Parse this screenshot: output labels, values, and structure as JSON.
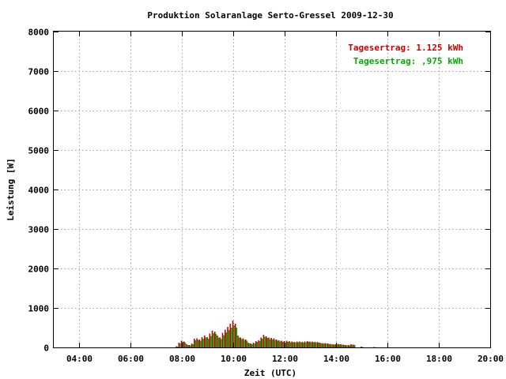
{
  "chart_data": {
    "type": "bar",
    "title": "Produktion Solaranlage Serto-Gressel 2009-12-30",
    "xlabel": "Zeit (UTC)",
    "ylabel": "Leistung [W]",
    "xlim": [
      3.0,
      20.0
    ],
    "ylim": [
      0,
      8000
    ],
    "xticks": [
      4,
      6,
      8,
      10,
      12,
      14,
      16,
      18,
      20
    ],
    "xtick_labels": [
      "04:00",
      "06:00",
      "08:00",
      "10:00",
      "12:00",
      "14:00",
      "16:00",
      "18:00",
      "20:00"
    ],
    "yticks": [
      0,
      1000,
      2000,
      3000,
      4000,
      5000,
      6000,
      7000,
      8000
    ],
    "ytick_labels": [
      "0",
      "1000",
      "2000",
      "3000",
      "4000",
      "5000",
      "6000",
      "7000",
      "8000"
    ],
    "grid": true,
    "legend": "top-right",
    "annotations": [
      {
        "text": "Tagesertrag: 1.125 kWh",
        "color": "#cc0000"
      },
      {
        "text": "Tagesertrag: ,975 kWh",
        "color": "#00aa00"
      }
    ],
    "series": [
      {
        "name": "",
        "color": "#cc0000",
        "x": [
          7.8,
          7.9,
          8.0,
          8.1,
          8.2,
          8.3,
          8.4,
          8.5,
          8.6,
          8.7,
          8.8,
          8.9,
          9.0,
          9.1,
          9.2,
          9.3,
          9.4,
          9.5,
          9.6,
          9.7,
          9.8,
          9.9,
          10.0,
          10.1,
          10.2,
          10.3,
          10.4,
          10.5,
          10.6,
          10.7,
          10.8,
          10.9,
          11.0,
          11.1,
          11.2,
          11.3,
          11.4,
          11.5,
          11.6,
          11.7,
          11.8,
          11.9,
          12.0,
          12.1,
          12.2,
          12.3,
          12.4,
          12.5,
          12.6,
          12.7,
          12.8,
          12.9,
          13.0,
          13.1,
          13.2,
          13.3,
          13.4,
          13.5,
          13.6,
          13.7,
          13.8,
          13.9,
          14.0,
          14.1,
          14.2,
          14.3,
          14.4,
          14.5,
          14.6,
          14.7,
          15.0,
          15.5
        ],
        "values": [
          30,
          120,
          170,
          150,
          80,
          60,
          100,
          220,
          230,
          200,
          260,
          300,
          260,
          350,
          420,
          400,
          300,
          250,
          370,
          450,
          520,
          600,
          680,
          600,
          300,
          250,
          230,
          200,
          120,
          100,
          120,
          160,
          180,
          250,
          320,
          280,
          250,
          240,
          230,
          200,
          180,
          170,
          160,
          170,
          160,
          150,
          140,
          150,
          150,
          140,
          150,
          160,
          150,
          150,
          140,
          140,
          120,
          110,
          110,
          100,
          90,
          80,
          80,
          90,
          80,
          70,
          60,
          60,
          80,
          70,
          20,
          10
        ]
      },
      {
        "name": "",
        "color": "#00aa00",
        "x": [
          7.8,
          7.9,
          8.0,
          8.1,
          8.2,
          8.3,
          8.4,
          8.5,
          8.6,
          8.7,
          8.8,
          8.9,
          9.0,
          9.1,
          9.2,
          9.3,
          9.4,
          9.5,
          9.6,
          9.7,
          9.8,
          9.9,
          10.0,
          10.1,
          10.2,
          10.3,
          10.4,
          10.5,
          10.6,
          10.7,
          10.8,
          10.9,
          11.0,
          11.1,
          11.2,
          11.3,
          11.4,
          11.5,
          11.6,
          11.7,
          11.8,
          11.9,
          12.0,
          12.1,
          12.2,
          12.3,
          12.4,
          12.5,
          12.6,
          12.7,
          12.8,
          12.9,
          13.0,
          13.1,
          13.2,
          13.3,
          13.4,
          13.5,
          13.6,
          13.7,
          13.8,
          13.9,
          14.0,
          14.1,
          14.2,
          14.3,
          14.4,
          14.5,
          14.6,
          14.7,
          15.0,
          15.5
        ],
        "values": [
          20,
          100,
          140,
          120,
          60,
          50,
          80,
          180,
          190,
          170,
          220,
          250,
          220,
          290,
          360,
          340,
          250,
          210,
          310,
          380,
          440,
          500,
          560,
          500,
          250,
          210,
          190,
          170,
          100,
          80,
          100,
          140,
          160,
          220,
          270,
          240,
          210,
          200,
          190,
          170,
          150,
          140,
          130,
          140,
          130,
          130,
          120,
          130,
          130,
          120,
          130,
          140,
          130,
          130,
          120,
          120,
          100,
          95,
          95,
          85,
          75,
          70,
          70,
          80,
          70,
          60,
          50,
          50,
          70,
          60,
          15,
          8
        ]
      }
    ]
  }
}
